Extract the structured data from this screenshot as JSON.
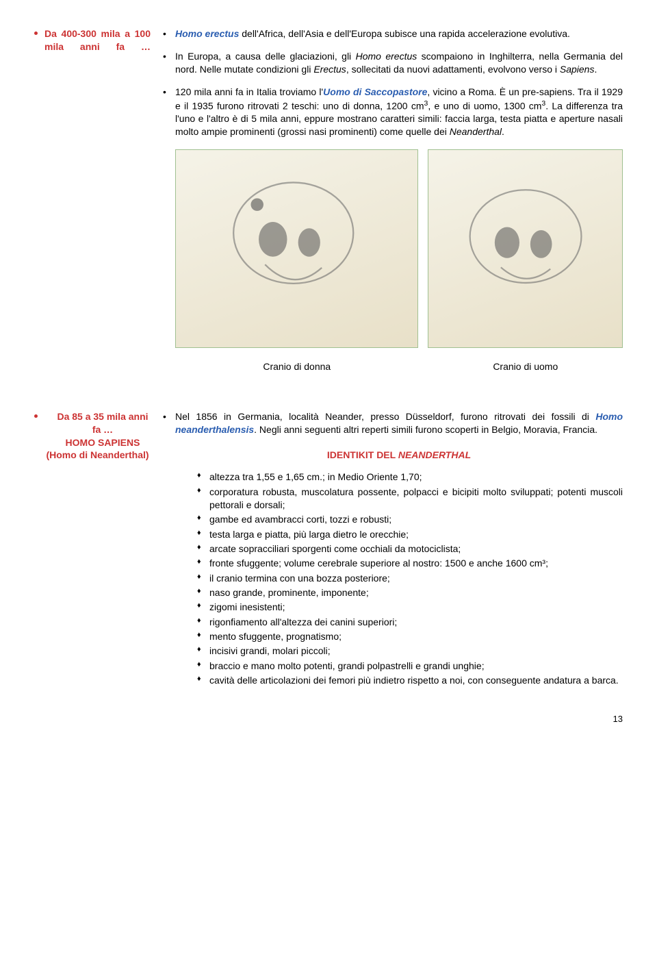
{
  "colors": {
    "blue": "#2a5db0",
    "red": "#cc3333",
    "black": "#000000"
  },
  "section1": {
    "left_label": "Da 400-300 mila a 100 mila anni fa …",
    "para1_pre": "Homo erectus",
    "para1_post": " dell'Africa, dell'Asia e dell'Europa subisce una rapida accelerazione evolutiva.",
    "para2_a": "In Europa, a causa delle glaciazioni, gli ",
    "para2_b": "Homo erectus",
    "para2_c": " scompaiono in Inghilterra, nella Germania del nord. Nelle mutate condizioni gli ",
    "para2_d": "Erectus",
    "para2_e": ", sollecitati da nuovi adattamenti, evolvono verso i ",
    "para2_f": "Sapiens",
    "para2_g": ".",
    "para3_a": "120 mila anni fa in Italia troviamo l'",
    "para3_b": "Uomo di Saccopastore",
    "para3_c": ", vicino a Roma. È un pre-sapiens. Tra il 1929 e il 1935 furono ritrovati 2 teschi: uno di donna, 1200 cm",
    "para3_d": ", e uno di uomo, 1300 cm",
    "para3_e": ". La differenza tra l'uno e l'altro è di 5 mila anni, eppure mostrano caratteri simili: faccia larga, testa piatta e aperture nasali molto ampie prominenti (grossi nasi prominenti) come quelle dei ",
    "para3_f": "Neanderthal",
    "para3_g": ".",
    "sup": "3",
    "caption_left": "Cranio di donna",
    "caption_right": "Cranio di uomo"
  },
  "section2": {
    "left_line1": "Da 85 a 35 mila anni fa …",
    "left_line2": "HOMO SAPIENS",
    "left_line3": "(Homo di Neanderthal)",
    "para1_a": "Nel 1856 in Germania, località Neander, presso Düsseldorf, furono ritrovati dei fossili di ",
    "para1_b": "Homo neanderthalensis",
    "para1_c": ". Negli anni seguenti altri reperti simili furono scoperti in Belgio, Moravia, Francia.",
    "identikit_a": "IDENTIKIT DEL ",
    "identikit_b": "NEANDERTHAL",
    "items": [
      "altezza tra 1,55 e 1,65 cm.; in Medio Oriente 1,70;",
      "corporatura robusta, muscolatura possente, polpacci e bicipiti molto sviluppati; potenti muscoli pettorali e dorsali;",
      "gambe ed avambracci corti, tozzi e robusti;",
      "testa larga e piatta, più larga dietro le orecchie;",
      "arcate sopracciliari sporgenti come occhiali da motociclista;",
      "fronte sfuggente; volume cerebrale superiore al nostro: 1500 e anche 1600 cm³;",
      "il cranio termina con una bozza posteriore;",
      "naso grande, prominente, imponente;",
      "zigomi inesistenti;",
      "rigonfiamento all'altezza dei canini superiori;",
      "mento sfuggente, prognatismo;",
      "incisivi grandi, molari piccoli;",
      "braccio e mano molto potenti, grandi polpastrelli e grandi unghie;",
      "cavità delle articolazioni dei femori più indietro rispetto a noi, con conseguente andatura a barca."
    ]
  },
  "page_number": "13"
}
